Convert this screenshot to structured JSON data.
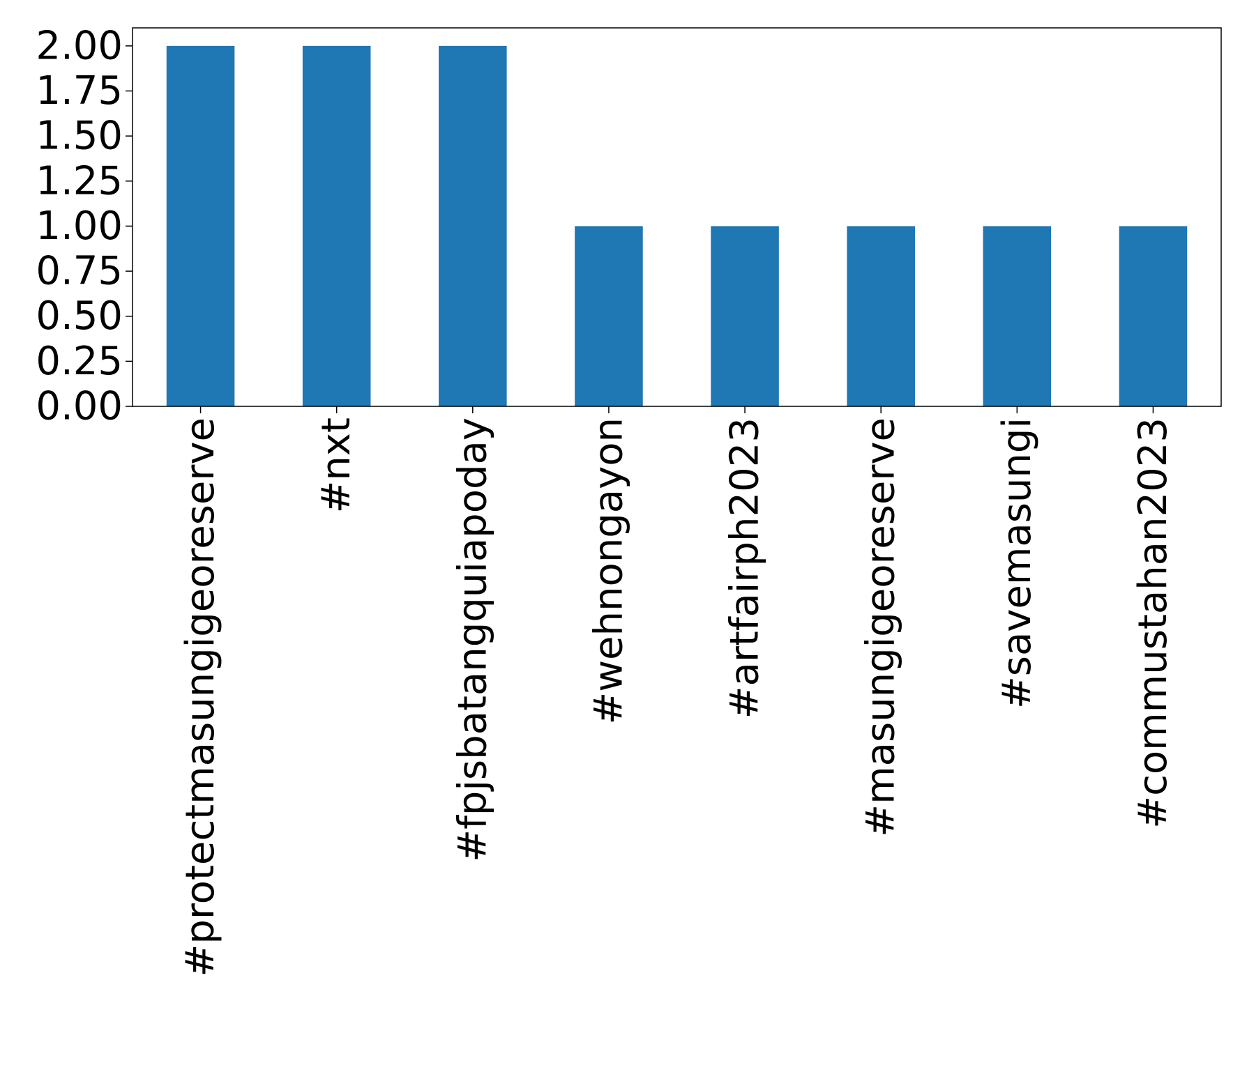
{
  "chart_data": {
    "type": "bar",
    "title": "",
    "xlabel": "",
    "ylabel": "",
    "categories": [
      "#protectmasungigeoreserve",
      "#nxt",
      "#fpjsbatangquiapoday",
      "#wehnongayon",
      "#artfairph2023",
      "#masungigeoreserve",
      "#savemasungi",
      "#commustahan2023"
    ],
    "values": [
      2,
      2,
      2,
      1,
      1,
      1,
      1,
      1
    ],
    "ylim": [
      0,
      2.1
    ],
    "yticks": [
      "0.00",
      "0.25",
      "0.50",
      "0.75",
      "1.00",
      "1.25",
      "1.50",
      "1.75",
      "2.00"
    ],
    "ytick_values": [
      0,
      0.25,
      0.5,
      0.75,
      1.0,
      1.25,
      1.5,
      1.75,
      2.0
    ],
    "bar_color": "#1f77b4",
    "grid": false,
    "legend": "none"
  }
}
